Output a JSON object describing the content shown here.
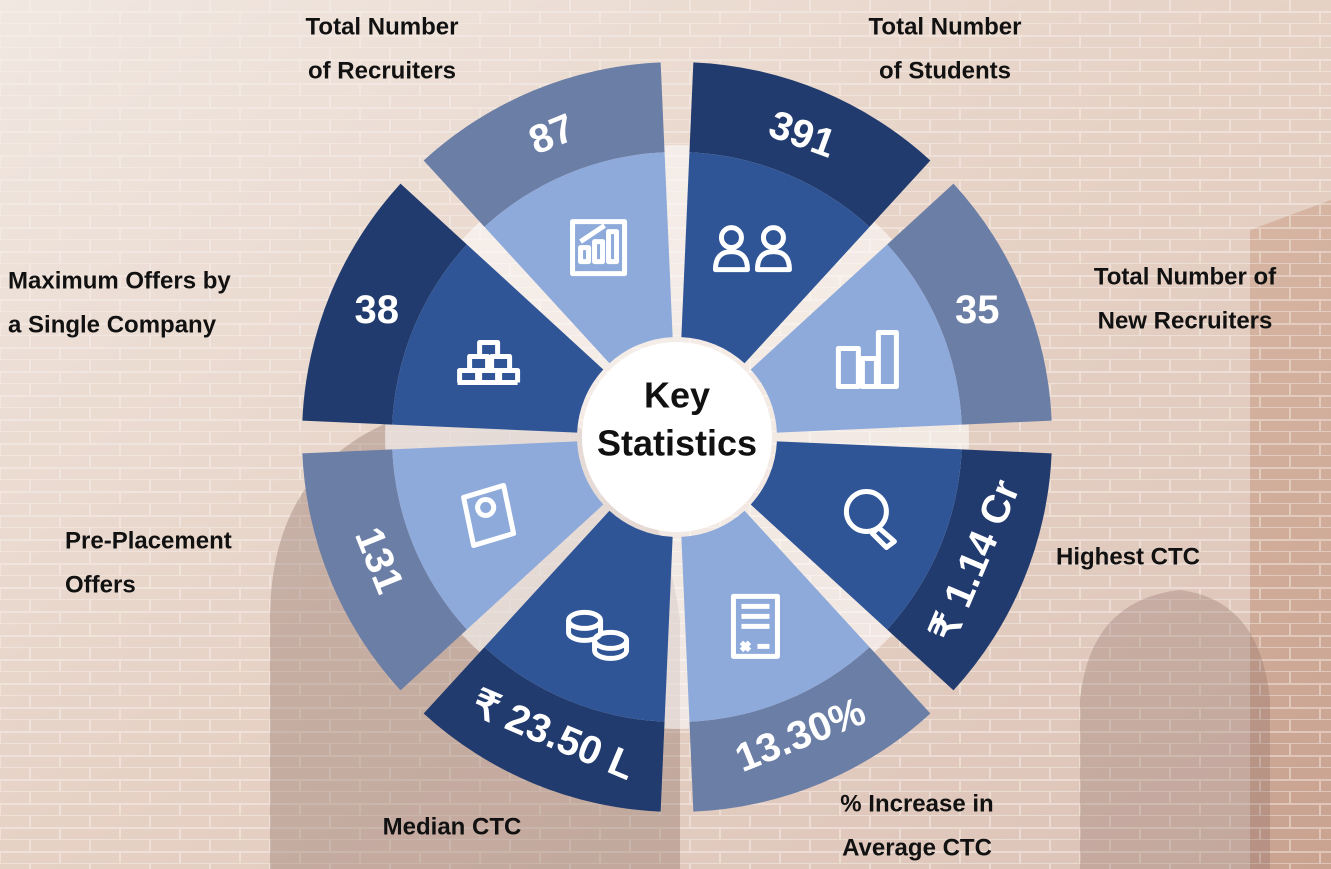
{
  "center_title": {
    "lines": [
      "Key",
      "Statistics"
    ]
  },
  "stats": [
    {
      "label_lines": [
        "Total Number",
        "of Recruiters"
      ],
      "value": "87"
    },
    {
      "label_lines": [
        "Total Number",
        "of Students"
      ],
      "value": "391"
    },
    {
      "label_lines": [
        "Total Number of",
        "New Recruiters"
      ],
      "value": "35"
    },
    {
      "label_lines": [
        "Highest CTC"
      ],
      "value": "₹ 1.14 Cr"
    },
    {
      "label_lines": [
        "% Increase in",
        "Average CTC"
      ],
      "value": "13.30%"
    },
    {
      "label_lines": [
        "Median CTC"
      ],
      "value": "₹ 23.50 L"
    },
    {
      "label_lines": [
        "Pre-Placement",
        "Offers"
      ],
      "value": "131"
    },
    {
      "label_lines": [
        "Maximum Offers by",
        "a Single Company"
      ],
      "value": "38"
    }
  ]
}
